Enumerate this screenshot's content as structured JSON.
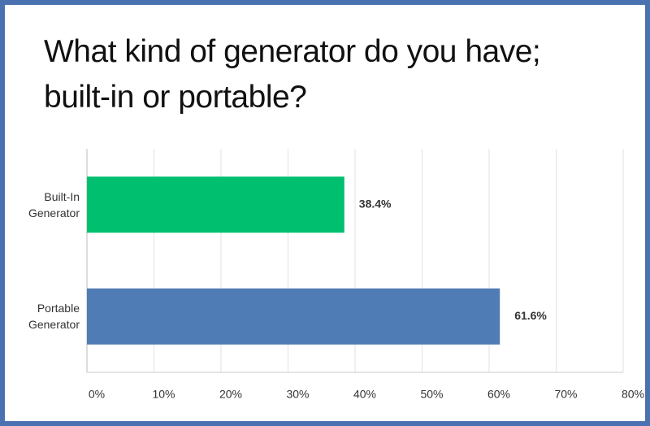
{
  "chart_data": {
    "type": "hbar",
    "title": "What kind of generator do you have; built-in or portable?",
    "categories": [
      "Built-In Generator",
      "Portable Generator"
    ],
    "values": [
      38.4,
      61.6
    ],
    "value_labels": [
      "38.4%",
      "61.6%"
    ],
    "colors": [
      "#00bf6f",
      "#507cb6"
    ],
    "xlim": [
      0,
      80
    ],
    "xticks": [
      {
        "value": 0,
        "label": "0%"
      },
      {
        "value": 10,
        "label": "10%"
      },
      {
        "value": 20,
        "label": "20%"
      },
      {
        "value": 30,
        "label": "30%"
      },
      {
        "value": 40,
        "label": "40%"
      },
      {
        "value": 50,
        "label": "50%"
      },
      {
        "value": 60,
        "label": "60%"
      },
      {
        "value": 70,
        "label": "70%"
      },
      {
        "value": 80,
        "label": "80%"
      }
    ],
    "grid": true
  }
}
